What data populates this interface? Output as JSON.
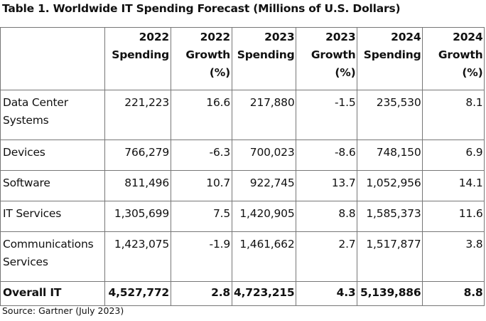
{
  "title": "Table 1. Worldwide IT Spending Forecast (Millions of U.S. Dollars)",
  "columns": [
    {
      "lines": [
        "2022",
        "Spending"
      ]
    },
    {
      "lines": [
        "2022",
        "Growth",
        "(%)"
      ]
    },
    {
      "lines": [
        "2023",
        "Spending"
      ]
    },
    {
      "lines": [
        "2023",
        "Growth",
        "(%)"
      ]
    },
    {
      "lines": [
        "2024",
        "Spending"
      ]
    },
    {
      "lines": [
        "2024",
        "Growth",
        "(%)"
      ]
    }
  ],
  "rows": [
    {
      "category": "Data Center Systems",
      "values": [
        "221,223",
        "16.6",
        "217,880",
        "-1.5",
        "235,530",
        "8.1"
      ]
    },
    {
      "category": "Devices",
      "values": [
        "766,279",
        "-6.3",
        "700,023",
        "-8.6",
        "748,150",
        "6.9"
      ]
    },
    {
      "category": "Software",
      "values": [
        "811,496",
        "10.7",
        "922,745",
        "13.7",
        "1,052,956",
        "14.1"
      ]
    },
    {
      "category": "IT Services",
      "values": [
        "1,305,699",
        "7.5",
        "1,420,905",
        "8.8",
        "1,585,373",
        "11.6"
      ]
    },
    {
      "category": "Communications Services",
      "values": [
        "1,423,075",
        "-1.9",
        "1,461,662",
        "2.7",
        "1,517,877",
        "3.8"
      ]
    },
    {
      "category": "Overall IT",
      "values": [
        "4,527,772",
        "2.8",
        "4,723,215",
        "4.3",
        "5,139,886",
        "8.8"
      ]
    }
  ],
  "source": "Source: Gartner (July 2023)"
}
